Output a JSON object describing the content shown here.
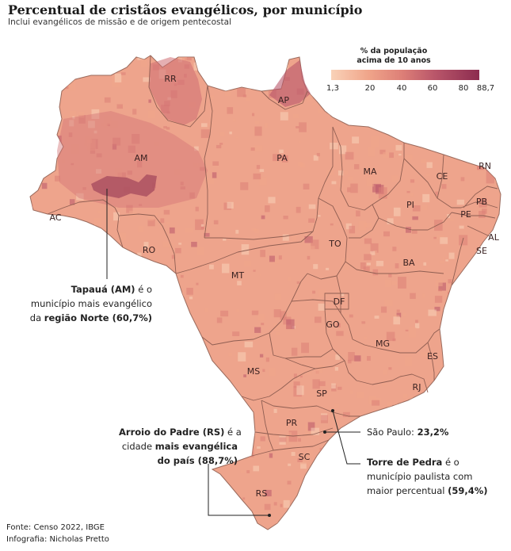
{
  "title": "Percentual de cristãos evangélicos, por município",
  "subtitle": "Inclui evangélicos de missão e de origem pentecostal",
  "legend": {
    "title_line1": "% da população",
    "title_line2": "acima de 10 anos",
    "ticks": [
      "1,3",
      "20",
      "40",
      "60",
      "80",
      "88,7"
    ],
    "colors": [
      "#f9d2b8",
      "#f0a58a",
      "#dd7f77",
      "#b9566a",
      "#8c2c4f"
    ]
  },
  "states": [
    "RR",
    "AP",
    "AM",
    "PA",
    "MA",
    "CE",
    "RN",
    "PB",
    "PI",
    "PE",
    "AL",
    "SE",
    "AC",
    "RO",
    "TO",
    "BA",
    "MT",
    "DF",
    "GO",
    "MG",
    "ES",
    "RJ",
    "MS",
    "SP",
    "PR",
    "SC",
    "RS"
  ],
  "annotations": {
    "tapaua": {
      "name": "Tapauá (AM)",
      "text1": " é o",
      "text2": "município mais evangélico",
      "text3a": "da ",
      "text3b": "região Norte (60,7%)"
    },
    "arroio": {
      "name": "Arroio do Padre (RS)",
      "text1": " é a",
      "text2a": "cidade ",
      "text2b": "mais evangélica",
      "text3": "do país (88,7%)"
    },
    "sao_paulo": {
      "text": "São Paulo: ",
      "value": "23,2%"
    },
    "torre": {
      "name": "Torre de Pedra",
      "text1": " é o",
      "text2": "município paulista com",
      "text3a": "maior percentual ",
      "text3b": "(59,4%)"
    }
  },
  "footer": {
    "source": "Fonte: Censo 2022, IBGE",
    "credit": "Infografia: Nicholas Pretto"
  }
}
